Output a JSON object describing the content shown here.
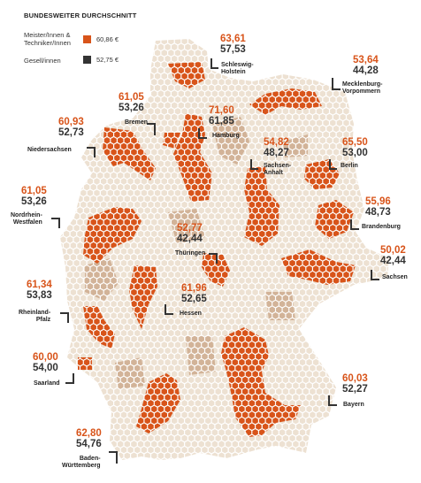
{
  "legend": {
    "title": "BUNDESWEITER DURCHSCHNITT",
    "meister_label_1": "Meister/Innen &",
    "meister_label_2": "Techniker/Innen",
    "meister_value": "60,86 €",
    "gesell_label": "Gesell/innen",
    "gesell_value": "52,75 €"
  },
  "colors": {
    "meister": "#d8541a",
    "gesell": "#333333",
    "hex_light": "#ede1d2",
    "hex_mid": "#d2b398",
    "hex_dark": "#d8541a"
  },
  "states": [
    {
      "id": "sh",
      "name_1": "Schleswig-",
      "name_2": "Holstein",
      "meister": "63,61",
      "gesell": "57,53"
    },
    {
      "id": "mv",
      "name_1": "Mecklenburg-",
      "name_2": "Vorpommern",
      "meister": "53,64",
      "gesell": "44,28"
    },
    {
      "id": "hb",
      "name_1": "Bremen",
      "name_2": "",
      "meister": "61,05",
      "gesell": "53,26"
    },
    {
      "id": "hh",
      "name_1": "Hamburg",
      "name_2": "",
      "meister": "71,60",
      "gesell": "61,85"
    },
    {
      "id": "ni",
      "name_1": "Niedersachsen",
      "name_2": "",
      "meister": "60,93",
      "gesell": "52,73"
    },
    {
      "id": "st",
      "name_1": "Sachsen-",
      "name_2": "Anhalt",
      "meister": "54,82",
      "gesell": "48,27"
    },
    {
      "id": "be",
      "name_1": "Berlin",
      "name_2": "",
      "meister": "65,50",
      "gesell": "53,00"
    },
    {
      "id": "nw",
      "name_1": "Nordrhein-",
      "name_2": "Westfalen",
      "meister": "61,05",
      "gesell": "53,26"
    },
    {
      "id": "bb",
      "name_1": "Brandenburg",
      "name_2": "",
      "meister": "55,96",
      "gesell": "48,73"
    },
    {
      "id": "th",
      "name_1": "Thüringen",
      "name_2": "",
      "meister": "52,77",
      "gesell": "42,44"
    },
    {
      "id": "sn",
      "name_1": "Sachsen",
      "name_2": "",
      "meister": "50,02",
      "gesell": "42,44"
    },
    {
      "id": "he",
      "name_1": "Hessen",
      "name_2": "",
      "meister": "61,96",
      "gesell": "52,65"
    },
    {
      "id": "rp",
      "name_1": "Rheinland-",
      "name_2": "Pfalz",
      "meister": "61,34",
      "gesell": "53,83"
    },
    {
      "id": "sl",
      "name_1": "Saarland",
      "name_2": "",
      "meister": "60,00",
      "gesell": "54,00"
    },
    {
      "id": "by",
      "name_1": "Bayern",
      "name_2": "",
      "meister": "60,03",
      "gesell": "52,27"
    },
    {
      "id": "bw",
      "name_1": "Baden-",
      "name_2": "Württemberg",
      "meister": "62,80",
      "gesell": "54,76"
    }
  ]
}
